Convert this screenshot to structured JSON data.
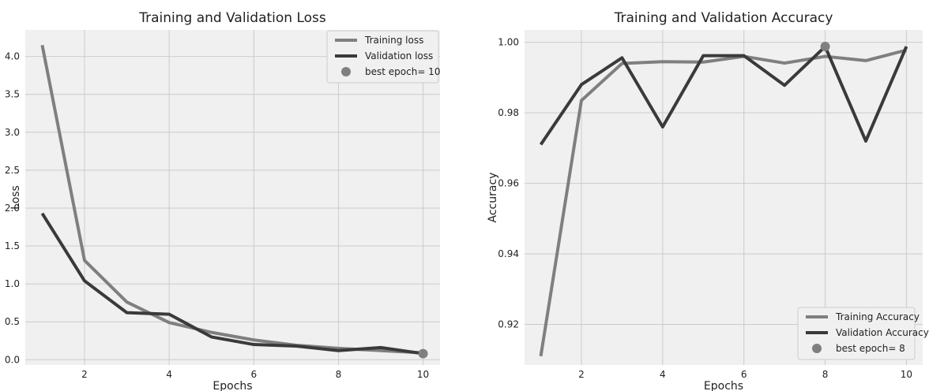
{
  "colors": {
    "series1": "#7f7f7f",
    "series2": "#3a3a3a",
    "marker": "#7f7f7f",
    "background": "#f0f0f0",
    "grid": "#cbcbcb"
  },
  "chart_data": [
    {
      "type": "line",
      "title": "Training and Validation Loss",
      "xlabel": "Epochs",
      "ylabel": "Loss",
      "xlim": [
        0.6,
        10.4
      ],
      "ylim": [
        -0.07,
        4.35
      ],
      "xticks": [
        2,
        4,
        6,
        8,
        10
      ],
      "yticks": [
        0.0,
        0.5,
        1.0,
        1.5,
        2.0,
        2.5,
        3.0,
        3.5,
        4.0
      ],
      "ytick_labels": [
        "0.0",
        "0.5",
        "1.0",
        "1.5",
        "2.0",
        "2.5",
        "3.0",
        "3.5",
        "4.0"
      ],
      "grid": true,
      "legend_position": "upper-right",
      "x": [
        1,
        2,
        3,
        4,
        5,
        6,
        7,
        8,
        9,
        10
      ],
      "series": [
        {
          "name": "Training loss",
          "color": "#7f7f7f",
          "values": [
            4.15,
            1.31,
            0.76,
            0.49,
            0.36,
            0.26,
            0.19,
            0.15,
            0.12,
            0.09
          ]
        },
        {
          "name": "Validation loss",
          "color": "#3a3a3a",
          "values": [
            1.93,
            1.04,
            0.62,
            0.6,
            0.3,
            0.2,
            0.18,
            0.12,
            0.16,
            0.08
          ]
        }
      ],
      "marker": {
        "label": "best epoch= 10",
        "x": 10,
        "y": 0.08
      }
    },
    {
      "type": "line",
      "title": "Training and Validation Accuracy",
      "xlabel": "Epochs",
      "ylabel": "Accuracy",
      "xlim": [
        0.6,
        10.4
      ],
      "ylim": [
        0.9085,
        1.0035
      ],
      "xticks": [
        2,
        4,
        6,
        8,
        10
      ],
      "yticks": [
        0.92,
        0.94,
        0.96,
        0.98,
        1.0
      ],
      "ytick_labels": [
        "0.92",
        "0.94",
        "0.96",
        "0.98",
        "1.00"
      ],
      "grid": true,
      "legend_position": "lower-right",
      "x": [
        1,
        2,
        3,
        4,
        5,
        6,
        7,
        8,
        9,
        10
      ],
      "series": [
        {
          "name": "Training Accuracy",
          "color": "#7f7f7f",
          "values": [
            0.911,
            0.9835,
            0.994,
            0.9945,
            0.9944,
            0.996,
            0.9941,
            0.996,
            0.9948,
            0.9978
          ]
        },
        {
          "name": "Validation Accuracy",
          "color": "#3a3a3a",
          "values": [
            0.971,
            0.988,
            0.9956,
            0.976,
            0.9962,
            0.9962,
            0.9878,
            0.9988,
            0.972,
            0.9988
          ]
        }
      ],
      "marker": {
        "label": "best epoch= 8",
        "x": 8,
        "y": 0.9988
      }
    }
  ]
}
